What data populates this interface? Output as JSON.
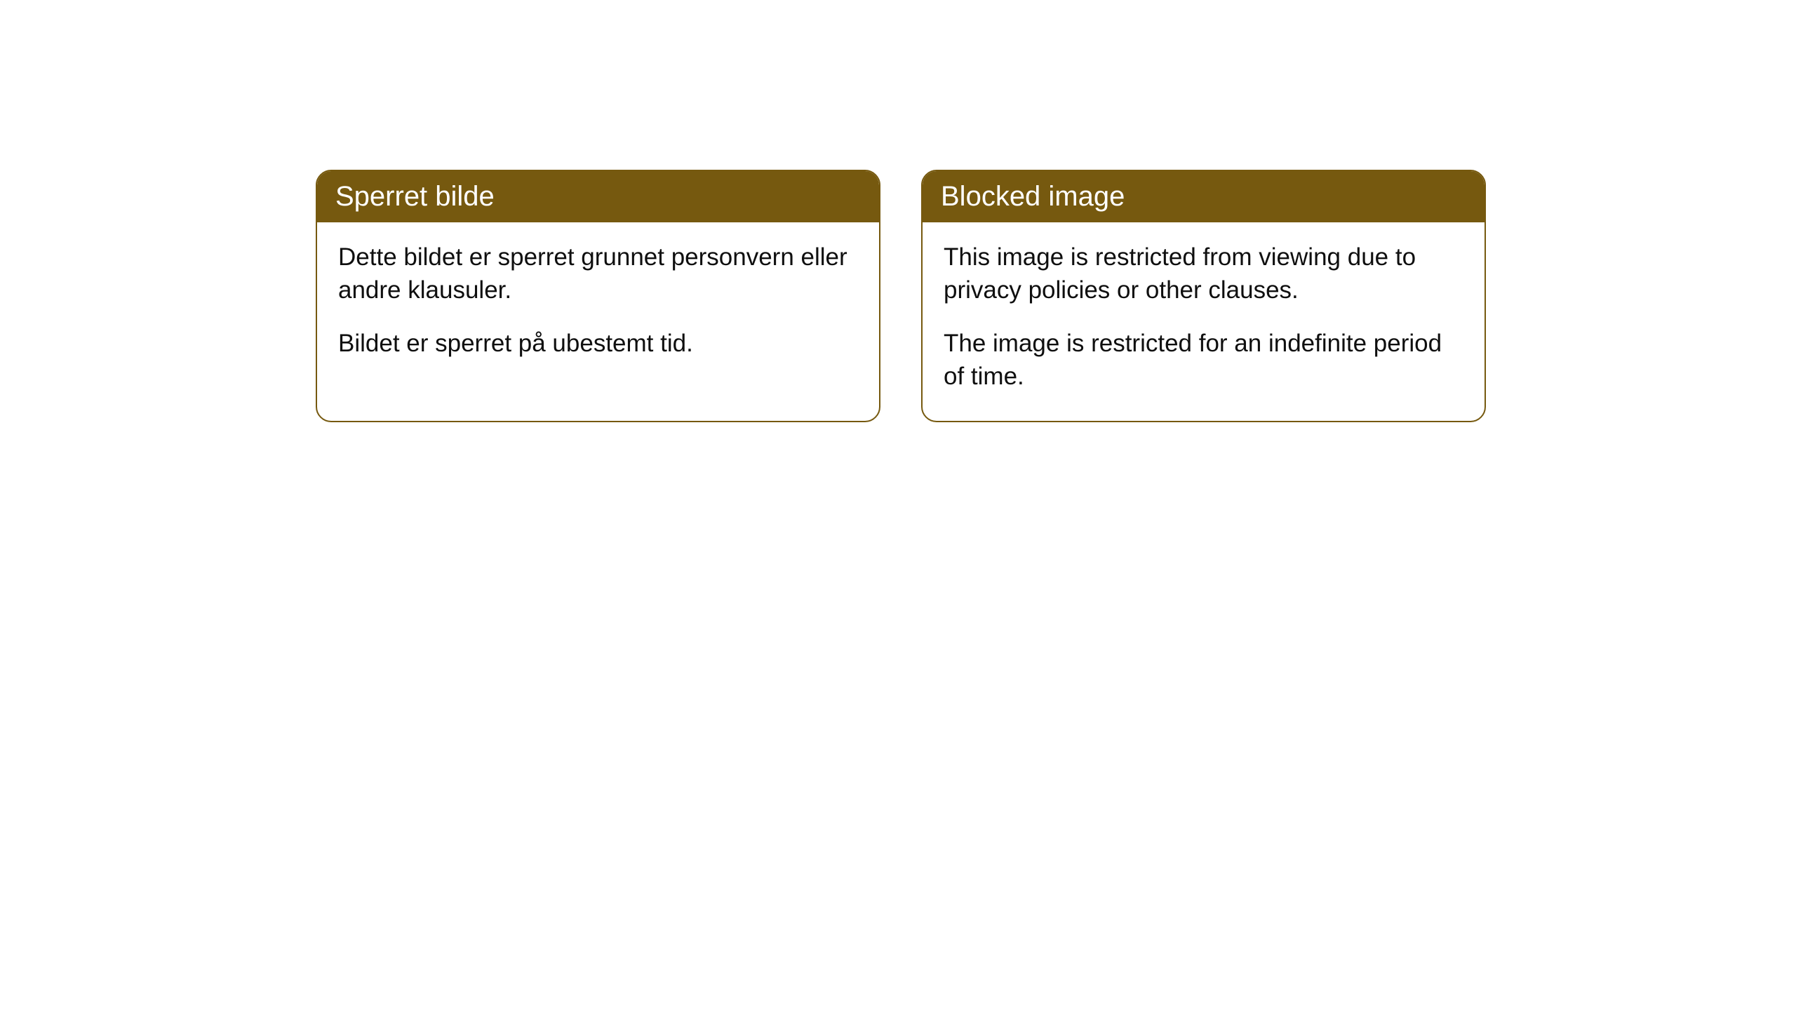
{
  "cards": [
    {
      "title": "Sperret bilde",
      "paragraph1": "Dette bildet er sperret grunnet personvern eller andre klausuler.",
      "paragraph2": "Bildet er sperret på ubestemt tid."
    },
    {
      "title": "Blocked image",
      "paragraph1": "This image is restricted from viewing due to privacy policies or other clauses.",
      "paragraph2": "The image is restricted for an indefinite period of time."
    }
  ],
  "styling": {
    "header_bg_color": "#76590f",
    "header_text_color": "#ffffff",
    "border_color": "#76590f",
    "body_bg_color": "#ffffff",
    "body_text_color": "#0f0f0f",
    "border_radius": 22,
    "header_font_size": 40,
    "body_font_size": 35
  }
}
